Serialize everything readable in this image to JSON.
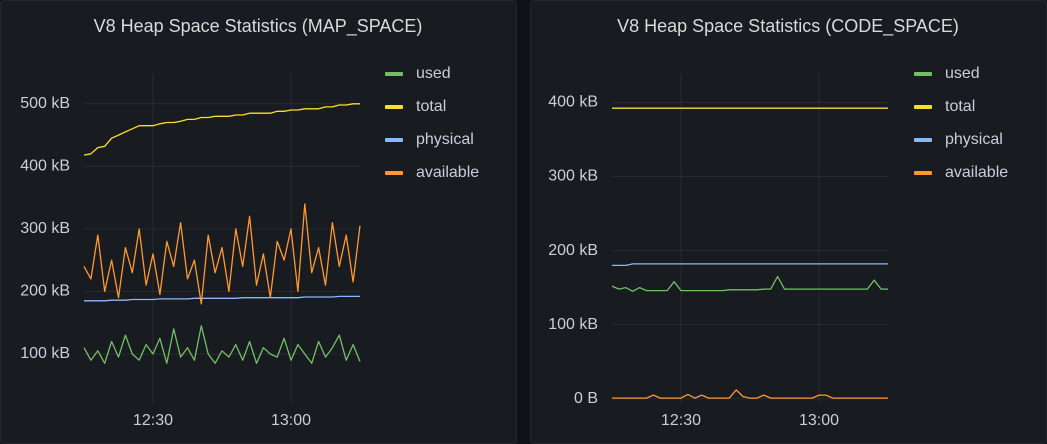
{
  "chart_data": [
    {
      "type": "line",
      "title": "V8 Heap Space Statistics (MAP_SPACE)",
      "x": [
        735,
        736.5,
        738,
        739.5,
        741,
        742.5,
        744,
        745.5,
        747,
        748.5,
        750,
        751.5,
        753,
        754.5,
        756,
        757.5,
        759,
        760.5,
        762,
        763.5,
        765,
        766.5,
        768,
        769.5,
        771,
        772.5,
        774,
        775.5,
        777,
        778.5,
        780,
        781.5,
        783,
        784.5,
        786,
        787.5,
        789,
        790.5,
        792,
        793.5,
        795
      ],
      "xlim": [
        735,
        795
      ],
      "xticks": [
        {
          "value": 750,
          "label": "12:30"
        },
        {
          "value": 780,
          "label": "13:00"
        }
      ],
      "ylim": [
        20,
        570
      ],
      "yticks": [
        {
          "value": 100,
          "label": "100 kB"
        },
        {
          "value": 200,
          "label": "200 kB"
        },
        {
          "value": 300,
          "label": "300 kB"
        },
        {
          "value": 400,
          "label": "400 kB"
        },
        {
          "value": 500,
          "label": "500 kB"
        }
      ],
      "grid": true,
      "legend": "right",
      "series": [
        {
          "name": "used",
          "color": "#73bf69",
          "values": [
            110,
            90,
            105,
            85,
            120,
            95,
            130,
            100,
            90,
            115,
            100,
            125,
            85,
            140,
            95,
            110,
            90,
            145,
            100,
            85,
            105,
            95,
            115,
            90,
            120,
            85,
            110,
            100,
            95,
            125,
            90,
            115,
            100,
            85,
            120,
            95,
            110,
            130,
            90,
            115,
            88
          ]
        },
        {
          "name": "total",
          "color": "#fade2a",
          "values": [
            418,
            420,
            430,
            432,
            445,
            450,
            455,
            460,
            465,
            465,
            465,
            468,
            470,
            470,
            472,
            475,
            475,
            478,
            478,
            480,
            480,
            480,
            482,
            482,
            485,
            485,
            485,
            485,
            488,
            488,
            490,
            490,
            492,
            492,
            492,
            495,
            495,
            498,
            498,
            500,
            500
          ]
        },
        {
          "name": "physical",
          "color": "#8ab8ff",
          "values": [
            185,
            185,
            185,
            185,
            186,
            186,
            186,
            187,
            187,
            187,
            187,
            188,
            188,
            188,
            188,
            188,
            189,
            189,
            189,
            189,
            189,
            189,
            189,
            190,
            190,
            190,
            190,
            190,
            190,
            190,
            190,
            190,
            191,
            191,
            191,
            191,
            191,
            192,
            192,
            192,
            192
          ]
        },
        {
          "name": "available",
          "color": "#ff9830",
          "values": [
            240,
            220,
            290,
            200,
            250,
            190,
            270,
            230,
            300,
            210,
            260,
            195,
            280,
            240,
            310,
            220,
            250,
            180,
            290,
            230,
            270,
            200,
            300,
            240,
            320,
            210,
            260,
            190,
            280,
            250,
            300,
            200,
            340,
            230,
            270,
            210,
            310,
            240,
            290,
            215,
            305
          ]
        }
      ]
    },
    {
      "type": "line",
      "title": "V8 Heap Space Statistics (CODE_SPACE)",
      "x": [
        735,
        736.5,
        738,
        739.5,
        741,
        742.5,
        744,
        745.5,
        747,
        748.5,
        750,
        751.5,
        753,
        754.5,
        756,
        757.5,
        759,
        760.5,
        762,
        763.5,
        765,
        766.5,
        768,
        769.5,
        771,
        772.5,
        774,
        775.5,
        777,
        778.5,
        780,
        781.5,
        783,
        784.5,
        786,
        787.5,
        789,
        790.5,
        792,
        793.5,
        795
      ],
      "xlim": [
        735,
        795
      ],
      "xticks": [
        {
          "value": 750,
          "label": "12:30"
        },
        {
          "value": 780,
          "label": "13:00"
        }
      ],
      "ylim": [
        -7,
        457
      ],
      "yticks": [
        {
          "value": 0,
          "label": "0 B"
        },
        {
          "value": 100,
          "label": "100 kB"
        },
        {
          "value": 200,
          "label": "200 kB"
        },
        {
          "value": 300,
          "label": "300 kB"
        },
        {
          "value": 400,
          "label": "400 kB"
        }
      ],
      "grid": true,
      "legend": "right",
      "series": [
        {
          "name": "used",
          "color": "#73bf69",
          "values": [
            152,
            148,
            150,
            145,
            150,
            146,
            146,
            146,
            146,
            158,
            146,
            146,
            146,
            146,
            146,
            146,
            146,
            147,
            147,
            147,
            147,
            147,
            148,
            148,
            165,
            148,
            148,
            148,
            148,
            148,
            148,
            148,
            148,
            148,
            148,
            148,
            148,
            148,
            160,
            148,
            148
          ]
        },
        {
          "name": "total",
          "color": "#fade2a",
          "values": [
            392,
            392,
            392,
            392,
            392,
            392,
            392,
            392,
            392,
            392,
            392,
            392,
            392,
            392,
            392,
            392,
            392,
            392,
            392,
            392,
            392,
            392,
            392,
            392,
            392,
            392,
            392,
            392,
            392,
            392,
            392,
            392,
            392,
            392,
            392,
            392,
            392,
            392,
            392,
            392,
            392
          ]
        },
        {
          "name": "physical",
          "color": "#8ab8ff",
          "values": [
            180,
            180,
            180,
            182,
            182,
            182,
            182,
            182,
            182,
            182,
            182,
            182,
            182,
            182,
            182,
            182,
            182,
            182,
            182,
            182,
            182,
            182,
            182,
            182,
            182,
            182,
            182,
            182,
            182,
            182,
            182,
            182,
            182,
            182,
            182,
            182,
            182,
            182,
            182,
            182,
            182
          ]
        },
        {
          "name": "available",
          "color": "#ff9830",
          "values": [
            1,
            1,
            1,
            1,
            1,
            1,
            5,
            1,
            1,
            1,
            1,
            6,
            1,
            5,
            1,
            1,
            1,
            1,
            12,
            3,
            1,
            1,
            5,
            1,
            1,
            1,
            1,
            1,
            1,
            1,
            5,
            5,
            1,
            1,
            1,
            1,
            1,
            1,
            1,
            1,
            1
          ]
        }
      ]
    }
  ]
}
